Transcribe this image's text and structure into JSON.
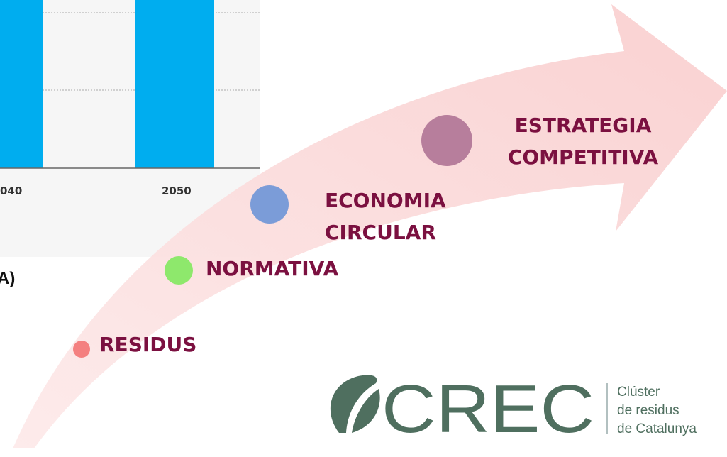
{
  "chart_fragment": {
    "x_labels": [
      "040",
      "2050"
    ]
  },
  "caption": "A)",
  "stages": [
    {
      "lines": [
        "RESIDUS"
      ]
    },
    {
      "lines": [
        "NORMATIVA"
      ]
    },
    {
      "lines": [
        "ECONOMIA",
        "CIRCULAR"
      ]
    },
    {
      "lines": [
        "ESTRATEGIA",
        "COMPETITIVA"
      ]
    }
  ],
  "logo": {
    "name": "CREC",
    "tagline": [
      "Clúster",
      "de residus",
      "de Catalunya"
    ]
  }
}
